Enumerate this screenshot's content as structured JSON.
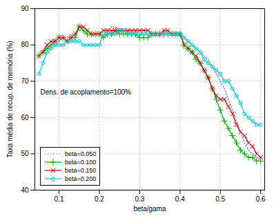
{
  "chart_data": {
    "type": "line",
    "xlabel": "beta/gama",
    "ylabel": "Taxa média de recup. de memória (%)",
    "annotation": "Dens. de acoplamento=100%",
    "xlim": [
      0.04,
      0.61
    ],
    "ylim": [
      40,
      90
    ],
    "xticks": [
      0.1,
      0.2,
      0.3,
      0.4,
      0.5,
      0.6
    ],
    "yticks": [
      40,
      50,
      60,
      70,
      80,
      90
    ],
    "grid": true,
    "legend": "lower left",
    "x": [
      0.05,
      0.06,
      0.07,
      0.08,
      0.09,
      0.1,
      0.11,
      0.12,
      0.13,
      0.14,
      0.15,
      0.16,
      0.17,
      0.18,
      0.19,
      0.2,
      0.21,
      0.22,
      0.23,
      0.24,
      0.25,
      0.26,
      0.27,
      0.28,
      0.29,
      0.3,
      0.31,
      0.32,
      0.33,
      0.34,
      0.35,
      0.36,
      0.37,
      0.38,
      0.39,
      0.4,
      0.41,
      0.42,
      0.43,
      0.44,
      0.45,
      0.46,
      0.47,
      0.48,
      0.49,
      0.5,
      0.51,
      0.52,
      0.53,
      0.54,
      0.55,
      0.56,
      0.57,
      0.58,
      0.59,
      0.6
    ],
    "series": [
      {
        "name": "beta=0.050",
        "color": "#6666ff",
        "line_style": "dotted",
        "marker": "none",
        "values": [
          77,
          78,
          79,
          80,
          80,
          81,
          82,
          82,
          83,
          83,
          84,
          85,
          84,
          83,
          83,
          83,
          84,
          84,
          85,
          85,
          84,
          84,
          84,
          84,
          84,
          84,
          84,
          84,
          83,
          83,
          83,
          83,
          83,
          83,
          83,
          83,
          82,
          81,
          80,
          79,
          78,
          77,
          76,
          74,
          72,
          70,
          68,
          65,
          62,
          59,
          56,
          53,
          51,
          50,
          49,
          49
        ]
      },
      {
        "name": "beta=0.100",
        "color": "#00aa00",
        "line_style": "solid",
        "marker": "plus",
        "values": [
          77,
          78,
          79,
          80,
          81,
          82,
          82,
          81,
          82,
          82,
          85,
          84,
          83,
          83,
          83,
          83,
          82,
          83,
          83,
          84,
          83,
          83,
          83,
          83,
          83,
          82,
          82,
          82,
          83,
          83,
          83,
          83,
          83,
          83,
          83,
          83,
          80,
          79,
          78,
          76,
          75,
          73,
          71,
          68,
          65,
          62,
          59,
          57,
          55,
          53,
          51,
          50,
          49,
          49,
          48,
          48
        ]
      },
      {
        "name": "beta=0.150",
        "color": "#dd0000",
        "line_style": "solid",
        "marker": "times",
        "values": [
          77,
          78,
          80,
          81,
          81,
          82,
          82,
          81,
          82,
          83,
          85,
          85,
          84,
          83,
          83,
          83,
          84,
          84,
          84,
          84,
          84,
          84,
          84,
          84,
          84,
          84,
          84,
          84,
          83,
          83,
          83,
          84,
          84,
          83,
          83,
          83,
          80,
          79,
          78,
          77,
          75,
          73,
          71,
          68,
          66,
          65,
          65,
          63,
          61,
          58,
          56,
          55,
          53,
          52,
          50,
          49
        ]
      },
      {
        "name": "beta=0.200",
        "color": "#00cccc",
        "line_style": "solid",
        "marker": "circle",
        "values": [
          72,
          75,
          78,
          79,
          80,
          80,
          80,
          81,
          81,
          81,
          81,
          80,
          80,
          80,
          80,
          80,
          83,
          83,
          83,
          83,
          84,
          84,
          83,
          83,
          83,
          83,
          83,
          83,
          83,
          83,
          83,
          83,
          83,
          83,
          83,
          83,
          82,
          81,
          80,
          79,
          78,
          76,
          75,
          74,
          73,
          72,
          70,
          70,
          68,
          66,
          64,
          61,
          60,
          59,
          58,
          58
        ]
      }
    ]
  }
}
